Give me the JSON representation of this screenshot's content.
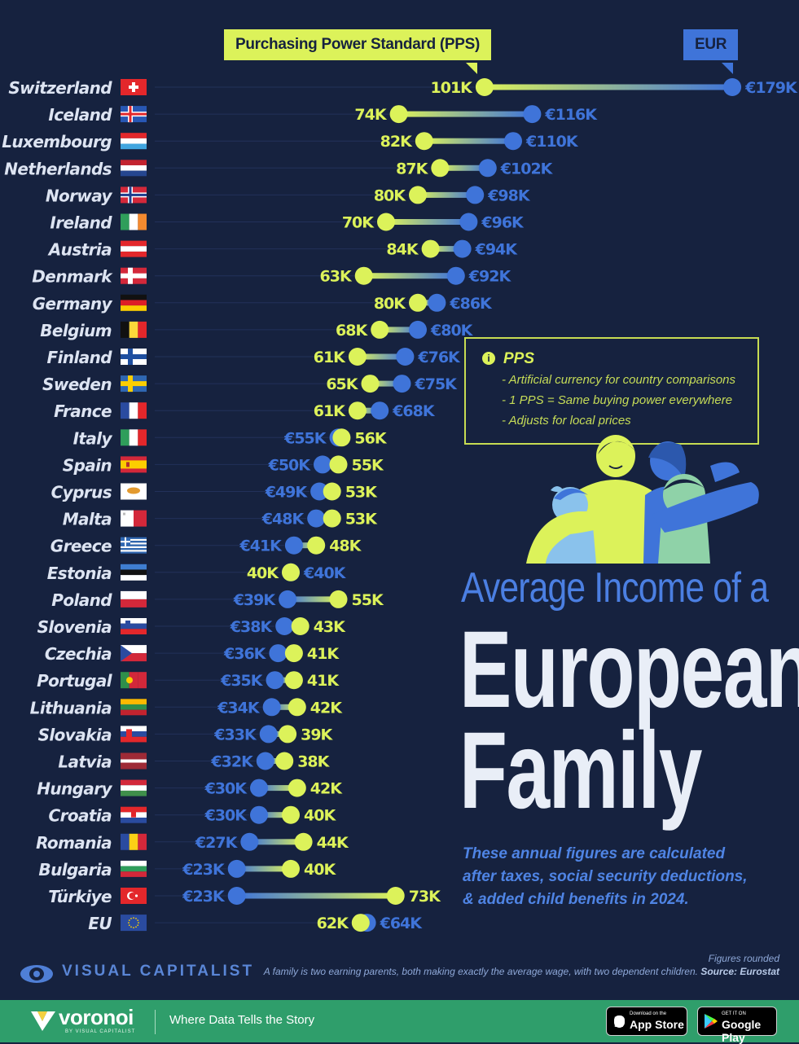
{
  "header": {
    "pps_label": "Purchasing Power Standard (PPS)",
    "eur_label": "EUR"
  },
  "colors": {
    "background": "#16223f",
    "pps": "#dcf25a",
    "eur": "#3f74d9",
    "country_text": "#dde4f2",
    "footer": "#2f9e6b"
  },
  "chart_data": {
    "type": "dumbbell",
    "series": [
      {
        "name": "Purchasing Power Standard (PPS)",
        "color": "#dcf25a"
      },
      {
        "name": "EUR",
        "color": "#3f74d9"
      }
    ],
    "rows": [
      {
        "country": "Switzerland",
        "flag": "ch",
        "pps": 101,
        "eur": 179,
        "pps_label": "101K",
        "eur_label": "€179K"
      },
      {
        "country": "Iceland",
        "flag": "is",
        "pps": 74,
        "eur": 116,
        "pps_label": "74K",
        "eur_label": "€116K"
      },
      {
        "country": "Luxembourg",
        "flag": "lu",
        "pps": 82,
        "eur": 110,
        "pps_label": "82K",
        "eur_label": "€110K"
      },
      {
        "country": "Netherlands",
        "flag": "nl",
        "pps": 87,
        "eur": 102,
        "pps_label": "87K",
        "eur_label": "€102K"
      },
      {
        "country": "Norway",
        "flag": "no",
        "pps": 80,
        "eur": 98,
        "pps_label": "80K",
        "eur_label": "€98K"
      },
      {
        "country": "Ireland",
        "flag": "ie",
        "pps": 70,
        "eur": 96,
        "pps_label": "70K",
        "eur_label": "€96K"
      },
      {
        "country": "Austria",
        "flag": "at",
        "pps": 84,
        "eur": 94,
        "pps_label": "84K",
        "eur_label": "€94K"
      },
      {
        "country": "Denmark",
        "flag": "dk",
        "pps": 63,
        "eur": 92,
        "pps_label": "63K",
        "eur_label": "€92K"
      },
      {
        "country": "Germany",
        "flag": "de",
        "pps": 80,
        "eur": 86,
        "pps_label": "80K",
        "eur_label": "€86K"
      },
      {
        "country": "Belgium",
        "flag": "be",
        "pps": 68,
        "eur": 80,
        "pps_label": "68K",
        "eur_label": "€80K"
      },
      {
        "country": "Finland",
        "flag": "fi",
        "pps": 61,
        "eur": 76,
        "pps_label": "61K",
        "eur_label": "€76K"
      },
      {
        "country": "Sweden",
        "flag": "se",
        "pps": 65,
        "eur": 75,
        "pps_label": "65K",
        "eur_label": "€75K"
      },
      {
        "country": "France",
        "flag": "fr",
        "pps": 61,
        "eur": 68,
        "pps_label": "61K",
        "eur_label": "€68K"
      },
      {
        "country": "Italy",
        "flag": "it",
        "pps": 56,
        "eur": 55,
        "pps_label": "56K",
        "eur_label": "€55K"
      },
      {
        "country": "Spain",
        "flag": "es",
        "pps": 55,
        "eur": 50,
        "pps_label": "55K",
        "eur_label": "€50K"
      },
      {
        "country": "Cyprus",
        "flag": "cy",
        "pps": 53,
        "eur": 49,
        "pps_label": "53K",
        "eur_label": "€49K"
      },
      {
        "country": "Malta",
        "flag": "mt",
        "pps": 53,
        "eur": 48,
        "pps_label": "53K",
        "eur_label": "€48K"
      },
      {
        "country": "Greece",
        "flag": "gr",
        "pps": 48,
        "eur": 41,
        "pps_label": "48K",
        "eur_label": "€41K"
      },
      {
        "country": "Estonia",
        "flag": "ee",
        "pps": 40,
        "eur": 40,
        "pps_label": "40K",
        "eur_label": "€40K"
      },
      {
        "country": "Poland",
        "flag": "pl",
        "pps": 55,
        "eur": 39,
        "pps_label": "55K",
        "eur_label": "€39K"
      },
      {
        "country": "Slovenia",
        "flag": "si",
        "pps": 43,
        "eur": 38,
        "pps_label": "43K",
        "eur_label": "€38K"
      },
      {
        "country": "Czechia",
        "flag": "cz",
        "pps": 41,
        "eur": 36,
        "pps_label": "41K",
        "eur_label": "€36K"
      },
      {
        "country": "Portugal",
        "flag": "pt",
        "pps": 41,
        "eur": 35,
        "pps_label": "41K",
        "eur_label": "€35K"
      },
      {
        "country": "Lithuania",
        "flag": "lt",
        "pps": 42,
        "eur": 34,
        "pps_label": "42K",
        "eur_label": "€34K"
      },
      {
        "country": "Slovakia",
        "flag": "sk",
        "pps": 39,
        "eur": 33,
        "pps_label": "39K",
        "eur_label": "€33K"
      },
      {
        "country": "Latvia",
        "flag": "lv",
        "pps": 38,
        "eur": 32,
        "pps_label": "38K",
        "eur_label": "€32K"
      },
      {
        "country": "Hungary",
        "flag": "hu",
        "pps": 42,
        "eur": 30,
        "pps_label": "42K",
        "eur_label": "€30K"
      },
      {
        "country": "Croatia",
        "flag": "hr",
        "pps": 40,
        "eur": 30,
        "pps_label": "40K",
        "eur_label": "€30K"
      },
      {
        "country": "Romania",
        "flag": "ro",
        "pps": 44,
        "eur": 27,
        "pps_label": "44K",
        "eur_label": "€27K"
      },
      {
        "country": "Bulgaria",
        "flag": "bg",
        "pps": 40,
        "eur": 23,
        "pps_label": "40K",
        "eur_label": "€23K"
      },
      {
        "country": "Türkiye",
        "flag": "tr",
        "pps": 73,
        "eur": 23,
        "pps_label": "73K",
        "eur_label": "€23K"
      },
      {
        "country": "EU",
        "flag": "eu",
        "pps": 62,
        "eur": 64,
        "pps_label": "62K",
        "eur_label": "€64K"
      }
    ]
  },
  "info_box": {
    "title": "PPS",
    "icon": "info-icon",
    "lines": [
      "-  Artificial currency for country comparisons",
      "-  1 PPS = Same buying power everywhere",
      "-  Adjusts for local prices"
    ]
  },
  "title": {
    "line1": "Average Income of a",
    "line2": "European",
    "line3": "Family"
  },
  "subtitle": {
    "line1": "These annual figures are calculated",
    "line2": "after taxes, social security deductions,",
    "line3": "& added child benefits in 2024."
  },
  "notes": {
    "rounded": "Figures rounded",
    "definition": "A family is two earning parents, both making exactly the average wage, with two dependent children.",
    "source": "Source: Eurostat"
  },
  "brand": {
    "vc_name": "VISUAL CAPITALIST",
    "voronoi": "voronoi",
    "voronoi_sub": "BY VISUAL CAPITALIST",
    "tagline": "Where Data Tells the Story",
    "app_store_small": "Download on the",
    "app_store_big": "App Store",
    "google_small": "GET IT ON",
    "google_big": "Google Play"
  }
}
